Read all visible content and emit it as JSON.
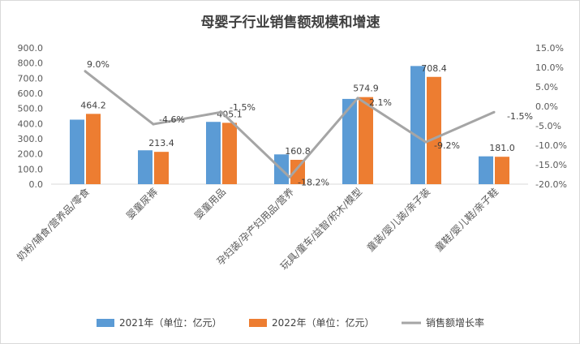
{
  "chart_data": {
    "type": "bar",
    "title": "母婴子行业销售额规模和增速",
    "categories": [
      "奶粉/辅食/营养品/零食",
      "婴童尿裤",
      "婴童用品",
      "孕妇装/孕产妇用品/营养",
      "玩具/童车/益智/积木/模型",
      "童装/婴儿装/亲子装",
      "童鞋/婴儿鞋/亲子鞋"
    ],
    "series": [
      {
        "name": "2021年（单位：亿元）",
        "type": "bar",
        "color": "#5b9bd5",
        "values": [
          426.0,
          223.7,
          411.3,
          196.6,
          563.0,
          780.2,
          183.8
        ]
      },
      {
        "name": "2022年（单位：亿元）",
        "type": "bar",
        "color": "#ed7d31",
        "values": [
          464.2,
          213.4,
          405.1,
          160.8,
          574.9,
          708.4,
          181.0
        ],
        "data_labels": [
          "464.2",
          "213.4",
          "405.1",
          "160.8",
          "574.9",
          "708.4",
          "181.0"
        ]
      },
      {
        "name": "销售额增长率",
        "type": "line",
        "axis": "right",
        "color": "#a5a5a5",
        "values": [
          9.0,
          -4.6,
          -1.5,
          -18.2,
          2.1,
          -9.2,
          -1.5
        ],
        "data_labels": [
          "9.0%",
          "-4.6%",
          "-1.5%",
          "-18.2%",
          "2.1%",
          "-9.2%",
          "-1.5%"
        ]
      }
    ],
    "y_left": {
      "min": 0,
      "max": 900,
      "step": 100,
      "tick_labels": [
        "0.0",
        "100.0",
        "200.0",
        "300.0",
        "400.0",
        "500.0",
        "600.0",
        "700.0",
        "800.0",
        "900.0"
      ]
    },
    "y_right": {
      "min": -20,
      "max": 15,
      "step": 5,
      "tick_labels": [
        "-20.0%",
        "-15.0%",
        "-10.0%",
        "-5.0%",
        "0.0%",
        "5.0%",
        "10.0%",
        "15.0%"
      ]
    },
    "grid": false,
    "legend_position": "bottom"
  }
}
